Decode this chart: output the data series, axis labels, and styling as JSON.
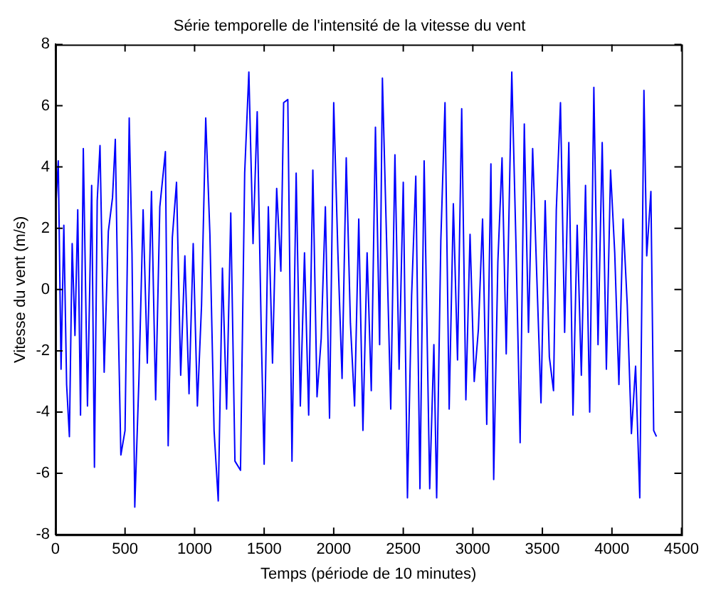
{
  "chart_data": {
    "type": "line",
    "title": "Série temporelle de l'intensité de la vitesse du vent",
    "xlabel": "Temps (période de 10 minutes)",
    "ylabel": "Vitesse du vent (m/s)",
    "x": [
      0,
      20,
      40,
      60,
      80,
      100,
      120,
      140,
      160,
      180,
      200,
      230,
      260,
      280,
      300,
      320,
      350,
      380,
      410,
      430,
      450,
      470,
      500,
      530,
      550,
      570,
      600,
      630,
      660,
      690,
      720,
      750,
      790,
      810,
      840,
      870,
      900,
      930,
      960,
      990,
      1020,
      1050,
      1080,
      1110,
      1140,
      1170,
      1200,
      1230,
      1260,
      1290,
      1330,
      1360,
      1390,
      1420,
      1450,
      1480,
      1500,
      1530,
      1560,
      1590,
      1620,
      1640,
      1670,
      1700,
      1730,
      1760,
      1790,
      1820,
      1850,
      1880,
      1910,
      1940,
      1970,
      2000,
      2030,
      2060,
      2090,
      2120,
      2150,
      2180,
      2210,
      2240,
      2270,
      2300,
      2330,
      2350,
      2380,
      2410,
      2440,
      2470,
      2500,
      2530,
      2560,
      2590,
      2620,
      2650,
      2690,
      2720,
      2740,
      2770,
      2800,
      2830,
      2860,
      2890,
      2920,
      2950,
      2980,
      3010,
      3040,
      3070,
      3100,
      3130,
      3150,
      3180,
      3210,
      3240,
      3280,
      3310,
      3340,
      3370,
      3400,
      3430,
      3460,
      3490,
      3520,
      3550,
      3580,
      3600,
      3630,
      3660,
      3690,
      3720,
      3750,
      3780,
      3810,
      3840,
      3870,
      3900,
      3930,
      3960,
      3990,
      4020,
      4050,
      4080,
      4110,
      4140,
      4170,
      4200,
      4230,
      4250,
      4280,
      4300,
      4320
    ],
    "series": [
      {
        "color": "#0000ff",
        "values": [
          2.5,
          4.2,
          -2.6,
          2.1,
          -3.1,
          -4.8,
          1.5,
          -1.5,
          2.6,
          -4.1,
          4.6,
          -3.8,
          3.4,
          -5.8,
          2.9,
          4.7,
          -2.7,
          1.9,
          3.0,
          4.9,
          -0.8,
          -5.4,
          -4.6,
          5.6,
          1.2,
          -7.1,
          -2.9,
          2.6,
          -2.4,
          3.2,
          -3.6,
          2.7,
          4.5,
          -5.1,
          1.7,
          3.5,
          -2.8,
          1.1,
          -3.4,
          1.5,
          -3.8,
          -0.5,
          5.6,
          1.8,
          -4.6,
          -6.9,
          0.7,
          -3.9,
          2.5,
          -5.6,
          -5.9,
          3.8,
          7.1,
          1.5,
          5.8,
          -1.6,
          -5.7,
          2.7,
          -2.4,
          3.3,
          0.6,
          6.1,
          6.2,
          -5.6,
          3.8,
          -3.8,
          1.2,
          -4.1,
          3.9,
          -3.5,
          -1.6,
          2.7,
          -4.2,
          6.1,
          1.2,
          -2.9,
          4.3,
          -1.1,
          -3.8,
          2.3,
          -4.6,
          1.2,
          -3.3,
          5.3,
          -1.8,
          6.9,
          1.6,
          -3.9,
          4.4,
          -2.6,
          3.5,
          -6.8,
          -0.2,
          3.7,
          -6.5,
          4.2,
          -6.5,
          -1.8,
          -6.8,
          1.6,
          6.1,
          -3.9,
          2.8,
          -2.3,
          5.9,
          -3.6,
          1.8,
          -3.0,
          -1.3,
          2.3,
          -4.4,
          4.1,
          -6.2,
          0.9,
          4.3,
          -2.1,
          7.1,
          1.5,
          -5.0,
          5.4,
          -1.4,
          4.6,
          0.4,
          -3.7,
          2.9,
          -2.2,
          -3.3,
          2.6,
          6.1,
          -1.4,
          4.8,
          -4.1,
          2.1,
          -2.8,
          3.4,
          -4.0,
          6.6,
          -1.8,
          4.8,
          -2.6,
          3.9,
          1.2,
          -3.1,
          2.3,
          -0.5,
          -4.7,
          -2.5,
          -6.8,
          6.5,
          1.1,
          3.2,
          -4.6,
          -4.8
        ]
      }
    ],
    "xlim": [
      0,
      4500
    ],
    "xticks": [
      0,
      500,
      1000,
      1500,
      2000,
      2500,
      3000,
      3500,
      4000,
      4500
    ],
    "ylim": [
      -8,
      8
    ],
    "yticks": [
      -8,
      -6,
      -4,
      -2,
      0,
      2,
      4,
      6,
      8
    ],
    "grid": false,
    "legend": false,
    "marker": "none",
    "line_style": "solid"
  }
}
